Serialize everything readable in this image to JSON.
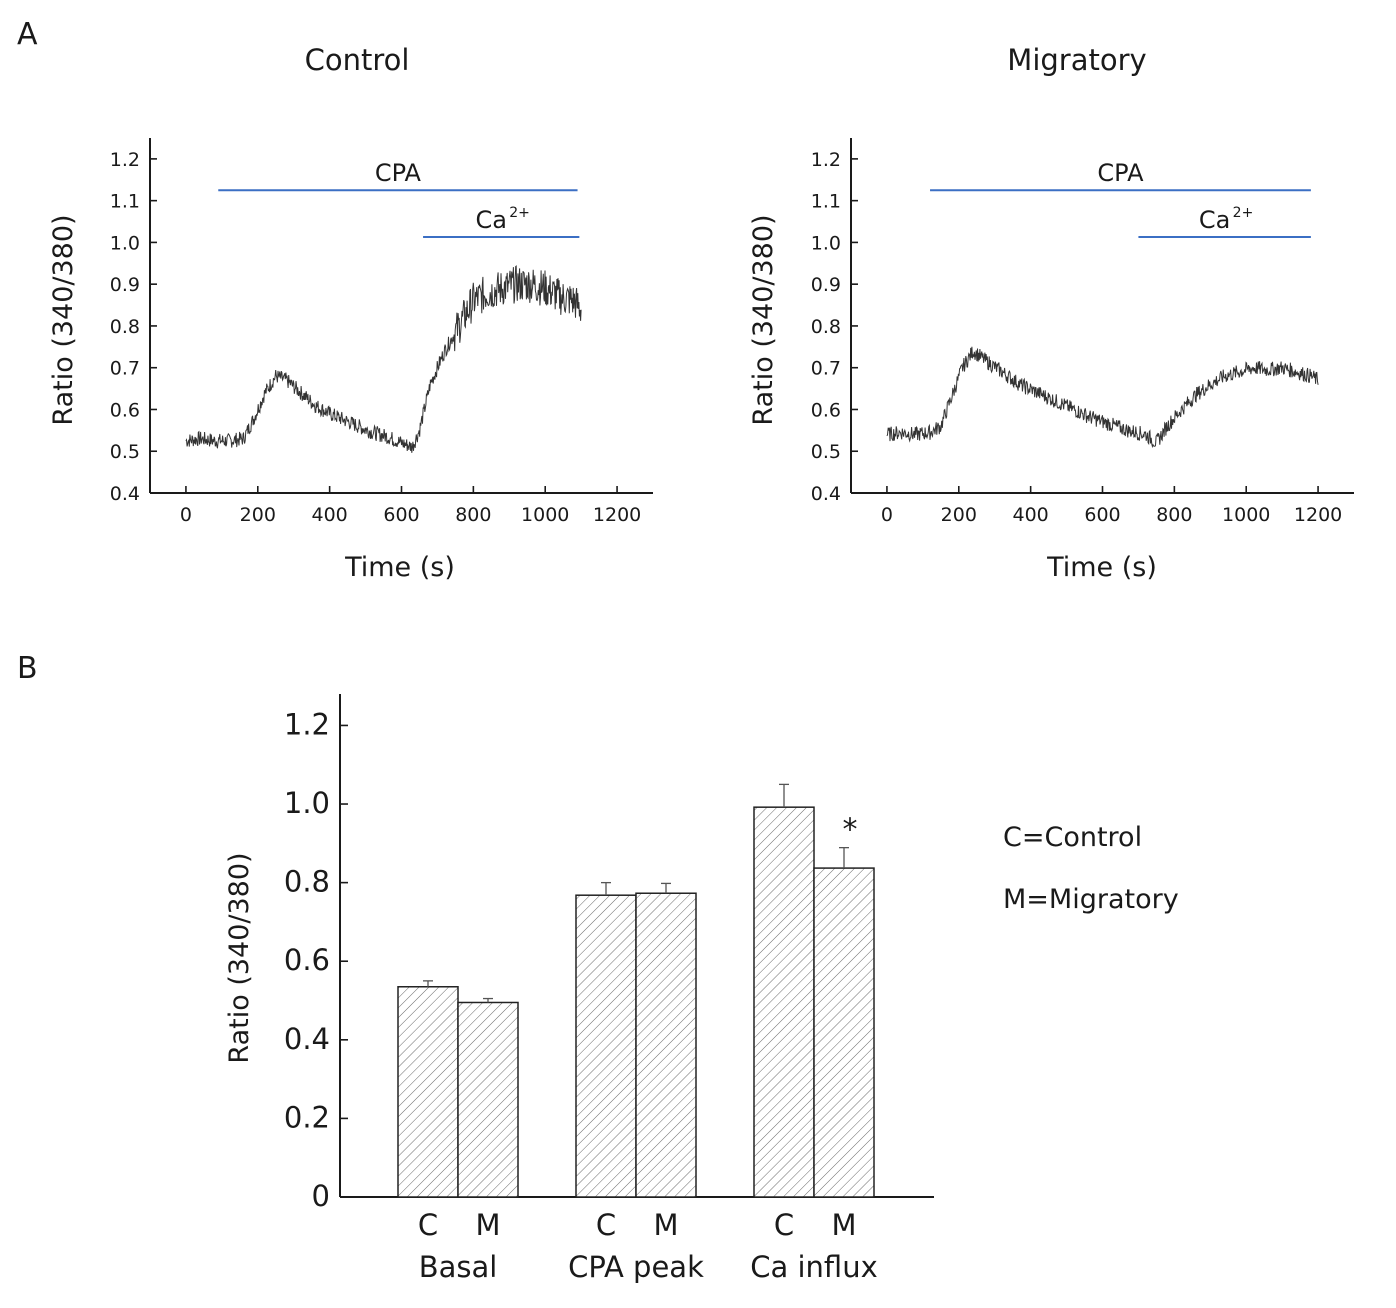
{
  "panel_letters": {
    "a": "A",
    "b": "B"
  },
  "legend": {
    "control": "C=Control",
    "migratory": "M=Migratory"
  },
  "chart_data": [
    {
      "type": "line",
      "title": "Control",
      "xlabel": "Time (s)",
      "ylabel": "Ratio (340/380)",
      "xlim": [
        -100,
        1300
      ],
      "ylim": [
        0.4,
        1.25
      ],
      "xticks": [
        "0",
        "200",
        "400",
        "600",
        "800",
        "1000",
        "1200"
      ],
      "yticks": [
        "0.4",
        "0.5",
        "0.6",
        "0.7",
        "0.8",
        "0.9",
        "1.0",
        "1.1",
        "1.2"
      ],
      "series": [
        {
          "x": [
            0,
            40,
            80,
            120,
            160,
            190,
            220,
            250,
            280,
            320,
            360,
            400,
            440,
            480,
            520,
            560,
            600,
            630,
            650,
            680,
            720,
            760,
            800,
            840,
            880,
            920,
            960,
            1000,
            1040,
            1080,
            1100
          ],
          "y": [
            0.525,
            0.53,
            0.525,
            0.525,
            0.53,
            0.58,
            0.64,
            0.68,
            0.67,
            0.64,
            0.61,
            0.59,
            0.575,
            0.56,
            0.545,
            0.535,
            0.52,
            0.51,
            0.55,
            0.66,
            0.74,
            0.8,
            0.86,
            0.88,
            0.89,
            0.9,
            0.9,
            0.89,
            0.87,
            0.86,
            0.84
          ]
        }
      ],
      "annotations": [
        {
          "text": "CPA",
          "x_start": 90,
          "x_end": 1090,
          "y": 1.125
        },
        {
          "text": "Ca",
          "superscript": "2+",
          "x_start": 660,
          "x_end": 1095,
          "y": 1.013
        }
      ]
    },
    {
      "type": "line",
      "title": "Migratory",
      "xlabel": "Time (s)",
      "ylabel": "Ratio (340/380)",
      "xlim": [
        -100,
        1300
      ],
      "ylim": [
        0.4,
        1.25
      ],
      "xticks": [
        "0",
        "200",
        "400",
        "600",
        "800",
        "1000",
        "1200"
      ],
      "yticks": [
        "0.4",
        "0.5",
        "0.6",
        "0.7",
        "0.8",
        "0.9",
        "1.0",
        "1.1",
        "1.2"
      ],
      "series": [
        {
          "x": [
            0,
            40,
            80,
            120,
            150,
            180,
            210,
            240,
            270,
            320,
            370,
            420,
            470,
            520,
            570,
            620,
            670,
            720,
            750,
            780,
            820,
            860,
            900,
            940,
            980,
            1020,
            1060,
            1100,
            1140,
            1180,
            1200
          ],
          "y": [
            0.54,
            0.545,
            0.54,
            0.545,
            0.56,
            0.63,
            0.7,
            0.74,
            0.72,
            0.69,
            0.66,
            0.64,
            0.62,
            0.6,
            0.58,
            0.565,
            0.55,
            0.54,
            0.52,
            0.56,
            0.6,
            0.635,
            0.66,
            0.68,
            0.69,
            0.7,
            0.695,
            0.7,
            0.69,
            0.68,
            0.67
          ]
        }
      ],
      "annotations": [
        {
          "text": "CPA",
          "x_start": 120,
          "x_end": 1180,
          "y": 1.125
        },
        {
          "text": "Ca",
          "superscript": "2+",
          "x_start": 700,
          "x_end": 1180,
          "y": 1.013
        }
      ]
    },
    {
      "type": "bar",
      "ylabel": "Ratio (340/380)",
      "ylim": [
        0,
        1.28
      ],
      "yticks": [
        "0",
        "0.2",
        "0.4",
        "0.6",
        "0.8",
        "1.0",
        "1.2"
      ],
      "groups": [
        {
          "label": "Basal",
          "bars": [
            {
              "label": "C",
              "value": 0.535,
              "error": 0.015
            },
            {
              "label": "M",
              "value": 0.495,
              "error": 0.01
            }
          ]
        },
        {
          "label": "CPA peak",
          "bars": [
            {
              "label": "C",
              "value": 0.768,
              "error": 0.032
            },
            {
              "label": "M",
              "value": 0.773,
              "error": 0.025
            }
          ]
        },
        {
          "label": "Ca influx",
          "bars": [
            {
              "label": "C",
              "value": 0.992,
              "error": 0.058
            },
            {
              "label": "M",
              "value": 0.837,
              "error": 0.052,
              "annotation": "*"
            }
          ]
        }
      ]
    }
  ]
}
